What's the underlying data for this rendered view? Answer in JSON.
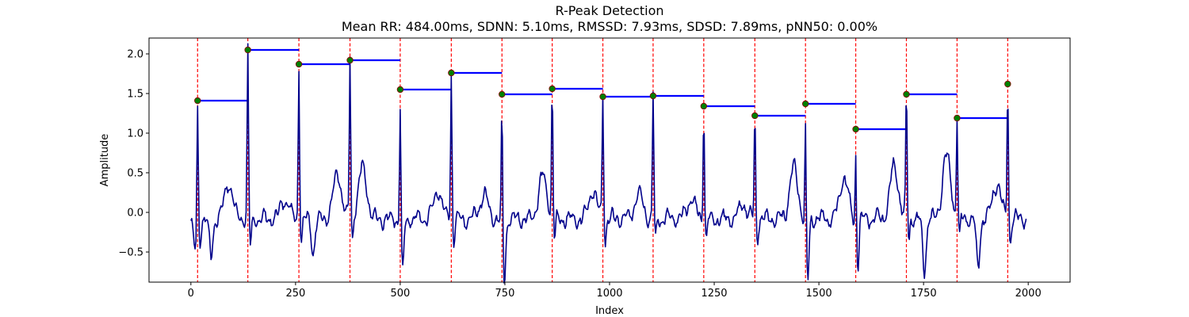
{
  "chart_data": {
    "type": "line",
    "title": "R-Peak Detection",
    "subtitle": "Mean RR: 484.00ms, SDNN: 5.10ms, RMSSD: 7.93ms, SDSD: 7.89ms, pNN50: 0.00%",
    "xlabel": "Index",
    "ylabel": "Amplitude",
    "xlim": [
      -100,
      2100
    ],
    "ylim": [
      -0.88,
      2.2
    ],
    "xticks": [
      0,
      250,
      500,
      750,
      1000,
      1250,
      1500,
      1750,
      2000
    ],
    "yticks": [
      -0.5,
      0.0,
      0.5,
      1.0,
      1.5,
      2.0
    ],
    "grid": false,
    "colors": {
      "signal": "#00008b",
      "peak_line": "#ff0000",
      "peak_marker": "#008000",
      "rr_segment": "#0000ff"
    },
    "peaks": [
      {
        "x": 16,
        "y": 1.41
      },
      {
        "x": 136,
        "y": 2.05
      },
      {
        "x": 258,
        "y": 1.87
      },
      {
        "x": 380,
        "y": 1.92
      },
      {
        "x": 500,
        "y": 1.55
      },
      {
        "x": 622,
        "y": 1.76
      },
      {
        "x": 743,
        "y": 1.49
      },
      {
        "x": 863,
        "y": 1.56
      },
      {
        "x": 984,
        "y": 1.46
      },
      {
        "x": 1104,
        "y": 1.47
      },
      {
        "x": 1225,
        "y": 1.34
      },
      {
        "x": 1347,
        "y": 1.22
      },
      {
        "x": 1468,
        "y": 1.37
      },
      {
        "x": 1588,
        "y": 1.05
      },
      {
        "x": 1709,
        "y": 1.49
      },
      {
        "x": 1830,
        "y": 1.19
      },
      {
        "x": 1951,
        "y": 1.62
      }
    ],
    "signal_features": {
      "t_wave": [
        {
          "x": 90,
          "y": 0.4
        },
        {
          "x": 225,
          "y": 0.2
        },
        {
          "x": 350,
          "y": 0.5
        },
        {
          "x": 410,
          "y": 0.6
        },
        {
          "x": 590,
          "y": 0.3
        },
        {
          "x": 700,
          "y": 0.25
        },
        {
          "x": 840,
          "y": 0.48
        },
        {
          "x": 960,
          "y": 0.3
        },
        {
          "x": 1070,
          "y": 0.28
        },
        {
          "x": 1195,
          "y": 0.2
        },
        {
          "x": 1320,
          "y": 0.12
        },
        {
          "x": 1440,
          "y": 0.6
        },
        {
          "x": 1560,
          "y": 0.48
        },
        {
          "x": 1680,
          "y": 0.62
        },
        {
          "x": 1805,
          "y": 0.75
        },
        {
          "x": 1925,
          "y": 0.4
        }
      ],
      "s_dip": [
        {
          "x": 10,
          "y": -0.5
        },
        {
          "x": 48,
          "y": -0.58
        },
        {
          "x": 146,
          "y": -0.18
        },
        {
          "x": 292,
          "y": -0.52
        },
        {
          "x": 505,
          "y": -0.55
        },
        {
          "x": 748,
          "y": -0.62
        },
        {
          "x": 1472,
          "y": -0.65
        },
        {
          "x": 1590,
          "y": -0.5
        },
        {
          "x": 1752,
          "y": -0.75
        },
        {
          "x": 1880,
          "y": -0.72
        }
      ],
      "end": {
        "x": 1995,
        "y": -0.08
      }
    }
  }
}
